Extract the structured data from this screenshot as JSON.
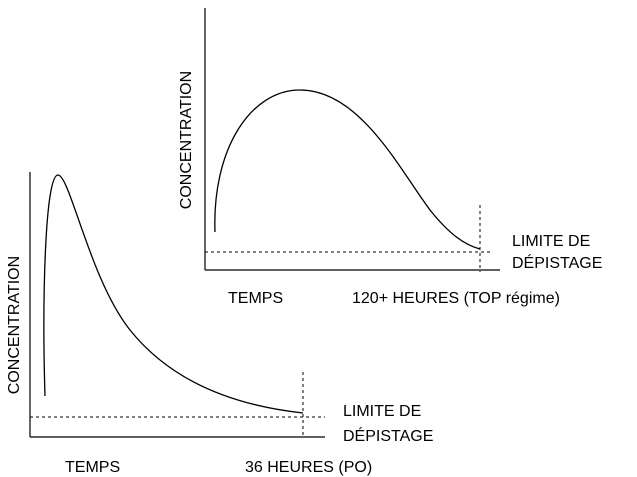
{
  "charts": [
    {
      "y_label": "CONCENTRATION",
      "x_label": "TEMPS",
      "duration": "120+ HEURES (TOP régime)",
      "threshold": [
        "LIMITE DE",
        "DÉPISTAGE"
      ]
    },
    {
      "y_label": "CONCENTRATION",
      "x_label": "TEMPS",
      "duration": "36 HEURES (PO)",
      "threshold": [
        "LIMITE DE",
        "DÉPISTAGE"
      ]
    }
  ]
}
